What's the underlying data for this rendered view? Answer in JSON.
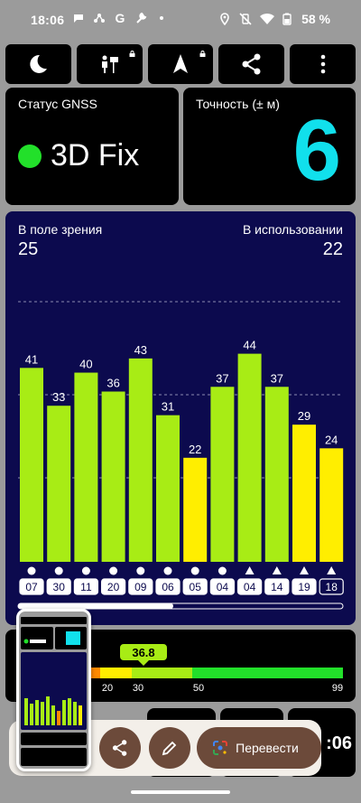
{
  "statusbar": {
    "time": "18:06",
    "battery_percent": "58 %",
    "icons_left": [
      "chat-bubble-icon",
      "hub-icon",
      "google-icon",
      "wrench-icon",
      "dot-icon"
    ],
    "icons_right": [
      "location-icon",
      "vibrate-off-icon",
      "wifi-icon",
      "battery-icon"
    ]
  },
  "toolbar": {
    "buttons": [
      "night-mode-icon",
      "map-mode-icon",
      "navigation-icon",
      "share-icon",
      "more-vert-icon"
    ]
  },
  "gnss_card": {
    "title": "Статус GNSS",
    "fix": "3D Fix",
    "fix_color": "#22e02a"
  },
  "accuracy_card": {
    "title": "Точность (± м)",
    "value": "6",
    "value_color": "#11e0ec"
  },
  "sky_card": {
    "in_view_label": "В поле зрения",
    "in_view_value": "25",
    "in_use_label": "В использовании",
    "in_use_value": "22"
  },
  "chart_data": {
    "type": "bar",
    "categories": [
      "07",
      "30",
      "11",
      "20",
      "09",
      "06",
      "05",
      "04",
      "04",
      "14",
      "19",
      "18"
    ],
    "values": [
      41,
      33,
      40,
      36,
      43,
      31,
      22,
      37,
      44,
      37,
      29,
      24
    ],
    "constellation_marker": [
      "circle",
      "circle",
      "circle",
      "circle",
      "circle",
      "circle",
      "circle",
      "circle",
      "triangle",
      "triangle",
      "triangle",
      "triangle"
    ],
    "bar_colors": [
      "#a8ec15",
      "#a8ec15",
      "#a8ec15",
      "#a8ec15",
      "#a8ec15",
      "#a8ec15",
      "#ffee00",
      "#a8ec15",
      "#a8ec15",
      "#a8ec15",
      "#ffee00",
      "#ffee00"
    ],
    "ylim": [
      0,
      55
    ],
    "grid": true
  },
  "dop": {
    "marker_value": "36.8",
    "scale_labels": [
      "20",
      "30",
      "50",
      "99"
    ],
    "segment_colors": [
      "#ff8a00",
      "#ffee00",
      "#a8ec15",
      "#22e02a"
    ]
  },
  "bottom": {
    "clock_fragment": ":06"
  },
  "actions": {
    "translate_label": "Перевести"
  }
}
